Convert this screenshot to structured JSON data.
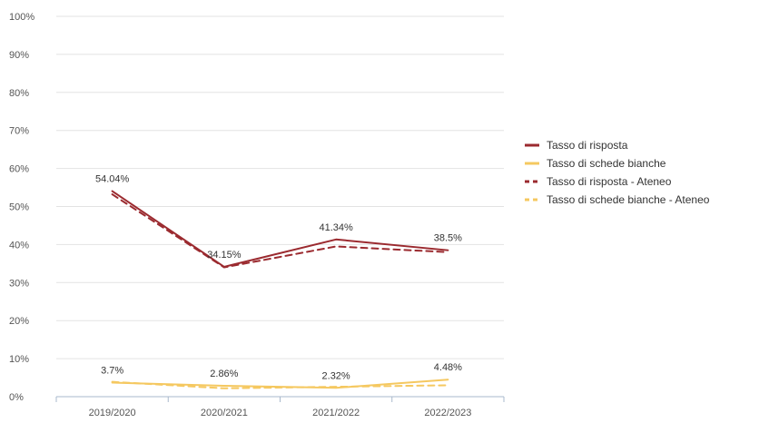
{
  "chart_data": {
    "type": "line",
    "title": "",
    "xlabel": "",
    "ylabel": "",
    "categories": [
      "2019/2020",
      "2020/2021",
      "2021/2022",
      "2022/2023"
    ],
    "ylim": [
      0,
      100
    ],
    "yticks": [
      0,
      10,
      20,
      30,
      40,
      50,
      60,
      70,
      80,
      90,
      100
    ],
    "ytick_labels": [
      "0%",
      "10%",
      "20%",
      "30%",
      "40%",
      "50%",
      "60%",
      "70%",
      "80%",
      "90%",
      "100%"
    ],
    "grid": true,
    "legend_position": "right",
    "series": [
      {
        "name": "Tasso di risposta",
        "values": [
          54.04,
          34.15,
          41.34,
          38.5
        ],
        "data_labels": [
          "54.04%",
          "34.15%",
          "41.34%",
          "38.5%"
        ],
        "color": "#9b2a2f",
        "style": "solid"
      },
      {
        "name": "Tasso di schede bianche",
        "values": [
          3.7,
          2.86,
          2.32,
          4.48
        ],
        "data_labels": [
          "3.7%",
          "2.86%",
          "2.32%",
          "4.48%"
        ],
        "color": "#f5c860",
        "style": "solid"
      },
      {
        "name": "Tasso di risposta - Ateneo",
        "values": [
          53.2,
          34.0,
          39.5,
          38.0
        ],
        "color": "#9b2a2f",
        "style": "dashed"
      },
      {
        "name": "Tasso di schede bianche - Ateneo",
        "values": [
          3.9,
          2.2,
          2.6,
          3.0
        ],
        "color": "#f5c860",
        "style": "dashed"
      }
    ]
  }
}
